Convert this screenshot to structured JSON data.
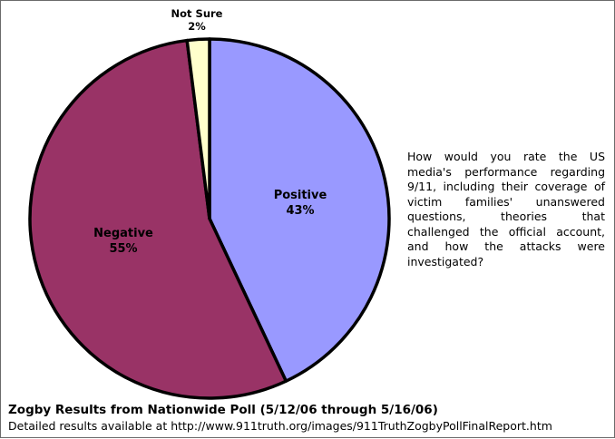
{
  "chart_data": {
    "type": "pie",
    "slices": [
      {
        "label": "Positive",
        "value": 43,
        "value_label": "43%",
        "color": "#9999ff"
      },
      {
        "label": "Negative",
        "value": 55,
        "value_label": "55%",
        "color": "#993366"
      },
      {
        "label": "Not Sure",
        "value": 2,
        "value_label": "2%",
        "color": "#ffffcc"
      }
    ],
    "start": "12 o'clock",
    "direction": "clockwise",
    "outline_color": "#000000"
  },
  "question": "How would you rate the US media's performance regarding 9/11, including their coverage of victim families' unanswered questions, theories that challenged the official account, and how the attacks were investigated?",
  "footer": {
    "title": "Zogby Results from Nationwide Poll (5/12/06 through 5/16/06)",
    "link_text": "Detailed results available at http://www.911truth.org/images/911TruthZogbyPollFinalReport.htm"
  }
}
